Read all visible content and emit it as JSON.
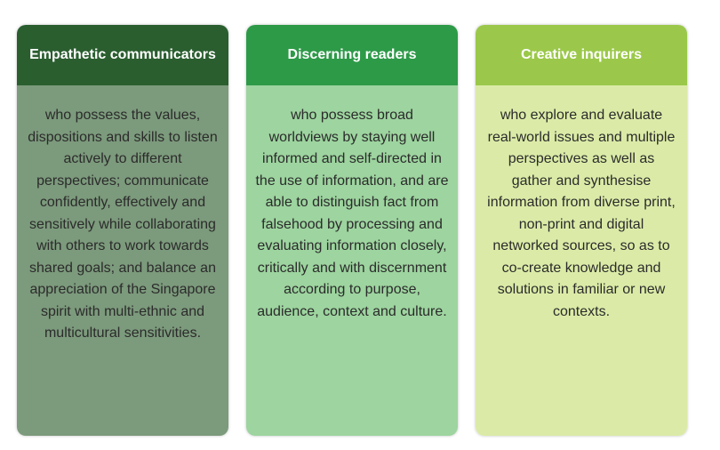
{
  "cards": [
    {
      "title": "Empathetic communicators",
      "body": "who possess the values, dispositions and skills to listen actively to different perspectives; communicate confidently, effectively and sensitively while collaborating with others to work towards shared goals; and balance an appreciation of the Singapore spirit with multi-ethnic and multicultural sensitivities.",
      "header_color": "#2a5e2f",
      "body_color": "#7c9a7c"
    },
    {
      "title": "Discerning readers",
      "body": "who possess broad worldviews by staying well informed and self-directed in the use of information, and are able to distinguish fact from falsehood by processing and evaluating information closely, critically and with discernment according to purpose, audience, context and culture.",
      "header_color": "#2d9a48",
      "body_color": "#9dd49f"
    },
    {
      "title": "Creative inquirers",
      "body": "who explore and evaluate real-world issues and multiple perspectives as well as gather and synthesise information from diverse print, non-print and digital networked sources, so as to co-create knowledge and solutions in familiar or new contexts.",
      "header_color": "#9bc84a",
      "body_color": "#dbeba7"
    }
  ]
}
